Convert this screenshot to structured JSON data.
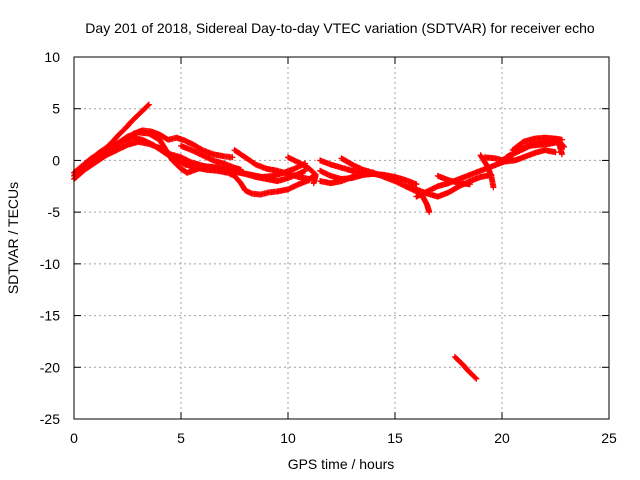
{
  "chart_data": {
    "type": "scatter",
    "title": "Day 201 of 2018, Sidereal Day-to-day VTEC variation (SDTVAR) for receiver echo",
    "xlabel": "GPS time / hours",
    "ylabel": "SDTVAR / TECUs",
    "xlim": [
      0,
      25
    ],
    "ylim": [
      -25,
      10
    ],
    "xticks": [
      0,
      5,
      10,
      15,
      20,
      25
    ],
    "yticks": [
      -25,
      -20,
      -15,
      -10,
      -5,
      0,
      5,
      10
    ],
    "grid": true,
    "marker": "+",
    "series": [
      {
        "name": "SDTVAR",
        "color": "#ff0000",
        "tracks": [
          [
            [
              0.0,
              -1.5
            ],
            [
              0.3,
              -0.8
            ],
            [
              0.6,
              -0.2
            ],
            [
              0.9,
              0.3
            ],
            [
              1.2,
              0.8
            ],
            [
              1.5,
              1.2
            ],
            [
              1.8,
              1.8
            ],
            [
              2.1,
              2.5
            ],
            [
              2.4,
              3.1
            ],
            [
              2.7,
              3.8
            ],
            [
              3.0,
              4.4
            ],
            [
              3.3,
              5.0
            ],
            [
              3.5,
              5.4
            ]
          ],
          [
            [
              0.0,
              -1.2
            ],
            [
              0.4,
              -0.5
            ],
            [
              0.8,
              0.2
            ],
            [
              1.2,
              0.6
            ],
            [
              1.6,
              1.0
            ],
            [
              2.0,
              1.5
            ],
            [
              2.4,
              2.0
            ],
            [
              2.8,
              2.6
            ],
            [
              3.2,
              2.9
            ],
            [
              3.6,
              2.8
            ],
            [
              4.0,
              2.5
            ],
            [
              4.4,
              2.0
            ],
            [
              4.8,
              2.2
            ],
            [
              5.2,
              1.9
            ],
            [
              5.6,
              1.5
            ],
            [
              6.0,
              1.0
            ],
            [
              6.5,
              0.6
            ],
            [
              7.0,
              0.4
            ],
            [
              7.4,
              0.3
            ]
          ],
          [
            [
              0.0,
              -1.8
            ],
            [
              0.5,
              -0.9
            ],
            [
              1.0,
              -0.2
            ],
            [
              1.5,
              0.5
            ],
            [
              2.0,
              1.0
            ],
            [
              2.5,
              1.5
            ],
            [
              3.0,
              1.8
            ],
            [
              3.5,
              1.6
            ],
            [
              4.0,
              1.2
            ],
            [
              4.5,
              0.6
            ],
            [
              5.0,
              0.3
            ],
            [
              5.5,
              -0.2
            ],
            [
              6.0,
              -0.5
            ],
            [
              6.5,
              -0.7
            ],
            [
              7.0,
              -0.9
            ],
            [
              7.5,
              -1.1
            ],
            [
              8.0,
              -1.3
            ],
            [
              8.5,
              -1.6
            ],
            [
              9.0,
              -1.8
            ],
            [
              9.5,
              -2.0
            ],
            [
              10.0,
              -1.7
            ],
            [
              10.5,
              -1.3
            ],
            [
              10.8,
              -1.0
            ]
          ],
          [
            [
              0.5,
              -0.5
            ],
            [
              1.0,
              0.2
            ],
            [
              1.5,
              0.8
            ],
            [
              2.0,
              1.6
            ],
            [
              2.5,
              2.3
            ],
            [
              3.0,
              2.7
            ],
            [
              3.5,
              2.6
            ],
            [
              4.0,
              2.0
            ],
            [
              4.3,
              1.0
            ],
            [
              4.6,
              0.0
            ],
            [
              5.0,
              -0.8
            ],
            [
              5.3,
              -1.2
            ],
            [
              5.8,
              -0.8
            ],
            [
              6.3,
              -0.6
            ],
            [
              6.8,
              -0.7
            ],
            [
              7.3,
              -0.9
            ],
            [
              7.8,
              -1.2
            ],
            [
              8.3,
              -1.4
            ],
            [
              8.8,
              -1.6
            ],
            [
              9.3,
              -1.5
            ],
            [
              9.8,
              -1.2
            ],
            [
              10.3,
              -0.8
            ],
            [
              10.8,
              -0.3
            ]
          ],
          [
            [
              0.7,
              -0.3
            ],
            [
              1.2,
              0.4
            ],
            [
              1.7,
              1.2
            ],
            [
              2.2,
              1.8
            ],
            [
              2.7,
              2.2
            ],
            [
              3.2,
              2.0
            ],
            [
              3.7,
              1.5
            ],
            [
              4.2,
              0.8
            ],
            [
              4.7,
              0.1
            ],
            [
              5.2,
              -0.4
            ],
            [
              5.7,
              -0.7
            ],
            [
              6.2,
              -0.9
            ],
            [
              6.7,
              -1.0
            ],
            [
              7.2,
              -1.2
            ],
            [
              7.5,
              -1.5
            ],
            [
              7.8,
              -2.2
            ],
            [
              8.0,
              -2.9
            ],
            [
              8.3,
              -3.2
            ],
            [
              8.7,
              -3.3
            ],
            [
              9.1,
              -3.1
            ],
            [
              9.5,
              -3.0
            ],
            [
              10.0,
              -2.8
            ],
            [
              10.5,
              -2.3
            ],
            [
              11.0,
              -1.9
            ]
          ],
          [
            [
              5.0,
              1.4
            ],
            [
              5.5,
              1.0
            ],
            [
              6.0,
              0.5
            ],
            [
              6.5,
              0.0
            ],
            [
              7.0,
              -0.3
            ],
            [
              7.5,
              -0.7
            ],
            [
              7.8,
              -0.9
            ]
          ],
          [
            [
              7.5,
              1.0
            ],
            [
              8.0,
              0.3
            ],
            [
              8.5,
              -0.4
            ],
            [
              9.0,
              -0.8
            ],
            [
              9.5,
              -1.0
            ],
            [
              10.0,
              -1.3
            ],
            [
              10.5,
              -1.6
            ],
            [
              11.0,
              -1.8
            ],
            [
              11.2,
              -1.5
            ]
          ],
          [
            [
              10.0,
              0.3
            ],
            [
              10.5,
              -0.2
            ],
            [
              11.0,
              -0.8
            ],
            [
              11.3,
              -1.4
            ],
            [
              11.2,
              -2.2
            ]
          ],
          [
            [
              11.5,
              0.0
            ],
            [
              12.0,
              -0.4
            ],
            [
              12.5,
              -0.7
            ],
            [
              13.0,
              -1.0
            ],
            [
              13.5,
              -1.2
            ],
            [
              14.0,
              -1.3
            ],
            [
              14.5,
              -1.4
            ],
            [
              15.0,
              -1.6
            ],
            [
              15.5,
              -1.9
            ],
            [
              16.0,
              -2.3
            ]
          ],
          [
            [
              11.5,
              -1.0
            ],
            [
              12.0,
              -1.5
            ],
            [
              12.5,
              -1.8
            ],
            [
              13.0,
              -1.7
            ],
            [
              13.5,
              -1.4
            ],
            [
              14.0,
              -1.3
            ],
            [
              14.5,
              -1.5
            ],
            [
              15.0,
              -1.8
            ]
          ],
          [
            [
              11.5,
              -2.0
            ],
            [
              12.0,
              -2.2
            ],
            [
              12.5,
              -2.0
            ],
            [
              13.0,
              -1.6
            ],
            [
              13.5,
              -1.4
            ],
            [
              14.0,
              -1.2
            ],
            [
              14.5,
              -1.6
            ],
            [
              15.0,
              -2.0
            ],
            [
              15.5,
              -2.5
            ],
            [
              16.0,
              -3.0
            ],
            [
              16.3,
              -3.5
            ],
            [
              16.5,
              -4.3
            ],
            [
              16.6,
              -5.0
            ]
          ],
          [
            [
              12.5,
              0.2
            ],
            [
              13.0,
              -0.4
            ],
            [
              13.5,
              -0.9
            ],
            [
              14.0,
              -1.2
            ]
          ],
          [
            [
              15.5,
              -2.5
            ],
            [
              16.0,
              -2.8
            ],
            [
              16.5,
              -3.2
            ],
            [
              17.0,
              -3.5
            ],
            [
              17.5,
              -3.1
            ],
            [
              18.0,
              -2.5
            ],
            [
              18.5,
              -2.0
            ],
            [
              19.0,
              -1.6
            ],
            [
              19.5,
              -1.4
            ]
          ],
          [
            [
              16.0,
              -3.5
            ],
            [
              16.5,
              -3.0
            ],
            [
              17.0,
              -2.5
            ],
            [
              17.5,
              -2.2
            ],
            [
              18.0,
              -1.8
            ],
            [
              18.5,
              -1.4
            ],
            [
              19.0,
              -1.0
            ],
            [
              19.5,
              -0.6
            ],
            [
              20.0,
              -0.2
            ],
            [
              20.5,
              0.2
            ]
          ],
          [
            [
              17.0,
              -1.5
            ],
            [
              17.5,
              -1.9
            ],
            [
              18.0,
              -2.2
            ],
            [
              18.5,
              -2.3
            ]
          ],
          [
            [
              19.0,
              0.5
            ],
            [
              19.3,
              -0.5
            ],
            [
              19.5,
              -1.5
            ],
            [
              19.6,
              -2.6
            ]
          ],
          [
            [
              20.0,
              0.0
            ],
            [
              20.5,
              0.6
            ],
            [
              21.0,
              1.1
            ],
            [
              21.5,
              1.6
            ],
            [
              22.0,
              1.9
            ],
            [
              22.5,
              2.1
            ],
            [
              22.8,
              2.0
            ]
          ],
          [
            [
              20.2,
              0.3
            ],
            [
              20.7,
              0.9
            ],
            [
              21.2,
              1.4
            ],
            [
              21.7,
              1.5
            ],
            [
              22.2,
              1.6
            ],
            [
              22.7,
              1.8
            ],
            [
              22.9,
              1.3
            ]
          ],
          [
            [
              20.5,
              1.0
            ],
            [
              21.0,
              1.8
            ],
            [
              21.5,
              2.1
            ],
            [
              22.0,
              2.2
            ],
            [
              22.5,
              2.1
            ],
            [
              22.7,
              1.4
            ],
            [
              22.8,
              0.6
            ]
          ],
          [
            [
              19.2,
              0.3
            ],
            [
              19.7,
              0.2
            ],
            [
              20.2,
              -0.1
            ],
            [
              20.6,
              0.0
            ],
            [
              21.0,
              0.3
            ],
            [
              21.5,
              0.7
            ],
            [
              22.0,
              1.0
            ],
            [
              22.5,
              0.8
            ]
          ],
          [
            [
              17.8,
              -19.0
            ],
            [
              18.0,
              -19.4
            ],
            [
              18.2,
              -19.8
            ],
            [
              18.4,
              -20.3
            ],
            [
              18.6,
              -20.7
            ],
            [
              18.8,
              -21.1
            ]
          ]
        ]
      }
    ]
  }
}
